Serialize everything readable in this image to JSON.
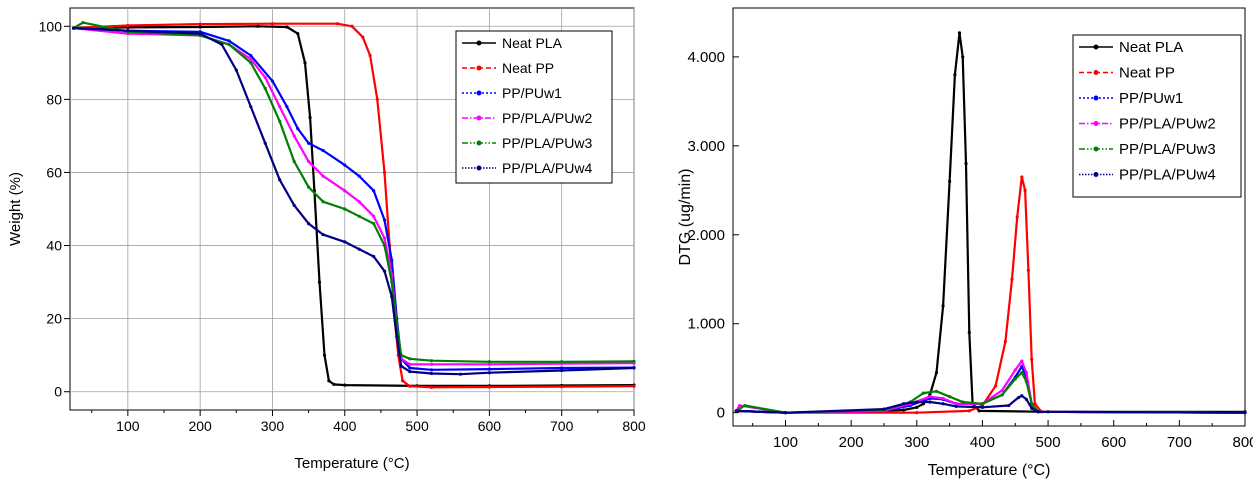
{
  "chart_data": [
    {
      "type": "line",
      "xlabel": "Temperature (°C)",
      "ylabel": "Weight (%)",
      "xlim": [
        20,
        800
      ],
      "ylim": [
        -5,
        105
      ],
      "xticks": [
        100,
        200,
        300,
        400,
        500,
        600,
        700,
        800
      ],
      "yticks": [
        0,
        20,
        40,
        60,
        80,
        100
      ],
      "xtick_labels": [
        "100",
        "200",
        "300",
        "400",
        "500",
        "600",
        "700",
        "800"
      ],
      "ytick_labels": [
        "0",
        "20",
        "40",
        "60",
        "80",
        "100"
      ],
      "grid": true,
      "legend_position": "top-right",
      "series": [
        {
          "name": "Neat PLA",
          "color": "#000000",
          "dash": "solid",
          "marker": "square",
          "points": [
            [
              25,
              99.5
            ],
            [
              100,
              99.7
            ],
            [
              200,
              99.8
            ],
            [
              280,
              100
            ],
            [
              320,
              99.8
            ],
            [
              335,
              98
            ],
            [
              345,
              90
            ],
            [
              352,
              75
            ],
            [
              358,
              55
            ],
            [
              365,
              30
            ],
            [
              372,
              10
            ],
            [
              378,
              3
            ],
            [
              385,
              2
            ],
            [
              400,
              1.8
            ],
            [
              500,
              1.6
            ],
            [
              600,
              1.6
            ],
            [
              700,
              1.7
            ],
            [
              800,
              1.8
            ]
          ]
        },
        {
          "name": "Neat PP",
          "color": "#ff0000",
          "dash": "dash",
          "marker": "circle",
          "points": [
            [
              25,
              99.5
            ],
            [
              100,
              100.2
            ],
            [
              200,
              100.6
            ],
            [
              300,
              100.7
            ],
            [
              390,
              100.7
            ],
            [
              410,
              100
            ],
            [
              425,
              97
            ],
            [
              435,
              92
            ],
            [
              445,
              80
            ],
            [
              455,
              60
            ],
            [
              462,
              40
            ],
            [
              468,
              22
            ],
            [
              474,
              10
            ],
            [
              480,
              3
            ],
            [
              490,
              1.5
            ],
            [
              520,
              1.2
            ],
            [
              600,
              1.3
            ],
            [
              700,
              1.4
            ],
            [
              800,
              1.5
            ]
          ]
        },
        {
          "name": "PP/PUw1",
          "color": "#0000ff",
          "dash": "dot",
          "marker": "triangle-up",
          "points": [
            [
              25,
              99.5
            ],
            [
              100,
              98.8
            ],
            [
              200,
              98.5
            ],
            [
              240,
              96
            ],
            [
              270,
              92
            ],
            [
              300,
              85
            ],
            [
              320,
              78
            ],
            [
              335,
              72
            ],
            [
              350,
              68
            ],
            [
              370,
              66
            ],
            [
              400,
              62
            ],
            [
              420,
              59
            ],
            [
              440,
              55
            ],
            [
              455,
              47
            ],
            [
              465,
              36
            ],
            [
              472,
              20
            ],
            [
              478,
              9
            ],
            [
              490,
              6.5
            ],
            [
              520,
              6
            ],
            [
              600,
              6.2
            ],
            [
              700,
              6.5
            ],
            [
              800,
              6.6
            ]
          ]
        },
        {
          "name": "PP/PLA/PUw2",
          "color": "#ff00ff",
          "dash": "dashdot",
          "marker": "triangle-down",
          "points": [
            [
              25,
              99.5
            ],
            [
              100,
              98
            ],
            [
              200,
              97.5
            ],
            [
              240,
              95
            ],
            [
              270,
              91
            ],
            [
              290,
              86
            ],
            [
              310,
              78
            ],
            [
              330,
              70
            ],
            [
              350,
              63
            ],
            [
              370,
              59
            ],
            [
              400,
              55
            ],
            [
              420,
              52
            ],
            [
              440,
              48
            ],
            [
              455,
              42
            ],
            [
              465,
              32
            ],
            [
              472,
              18
            ],
            [
              478,
              9
            ],
            [
              490,
              7.5
            ],
            [
              520,
              7.5
            ],
            [
              600,
              7.5
            ],
            [
              700,
              7.7
            ],
            [
              800,
              7.8
            ]
          ]
        },
        {
          "name": "PP/PLA/PUw3",
          "color": "#008000",
          "dash": "dashdotdot",
          "marker": "circle",
          "points": [
            [
              25,
              99.5
            ],
            [
              38,
              101
            ],
            [
              100,
              98.5
            ],
            [
              200,
              97.5
            ],
            [
              240,
              95
            ],
            [
              270,
              90
            ],
            [
              290,
              83
            ],
            [
              310,
              74
            ],
            [
              330,
              63
            ],
            [
              350,
              56
            ],
            [
              370,
              52
            ],
            [
              400,
              50
            ],
            [
              420,
              48
            ],
            [
              440,
              46
            ],
            [
              455,
              40
            ],
            [
              465,
              30
            ],
            [
              472,
              18
            ],
            [
              478,
              10
            ],
            [
              490,
              9
            ],
            [
              520,
              8.5
            ],
            [
              600,
              8.2
            ],
            [
              700,
              8.2
            ],
            [
              800,
              8.3
            ]
          ]
        },
        {
          "name": "PP/PLA/PUw4",
          "color": "#000080",
          "dash": "shortdot",
          "marker": "triangle-left",
          "points": [
            [
              25,
              99.5
            ],
            [
              100,
              98.8
            ],
            [
              200,
              98
            ],
            [
              230,
              95
            ],
            [
              250,
              88
            ],
            [
              270,
              78
            ],
            [
              290,
              68
            ],
            [
              310,
              58
            ],
            [
              330,
              51
            ],
            [
              350,
              46
            ],
            [
              370,
              43
            ],
            [
              400,
              41
            ],
            [
              420,
              39
            ],
            [
              440,
              37
            ],
            [
              455,
              33
            ],
            [
              465,
              26
            ],
            [
              472,
              15
            ],
            [
              478,
              7
            ],
            [
              490,
              5.5
            ],
            [
              520,
              5
            ],
            [
              560,
              4.8
            ],
            [
              600,
              5.2
            ],
            [
              700,
              5.8
            ],
            [
              800,
              6.5
            ]
          ]
        }
      ]
    },
    {
      "type": "line",
      "xlabel": "Temperature (°C)",
      "ylabel": "DTG (ug/min)",
      "xlim": [
        20,
        800
      ],
      "ylim": [
        -0.15,
        4.55
      ],
      "xticks": [
        100,
        200,
        300,
        400,
        500,
        600,
        700,
        800
      ],
      "yticks": [
        0,
        1,
        2,
        3,
        4
      ],
      "xtick_labels": [
        "100",
        "200",
        "300",
        "400",
        "500",
        "600",
        "700",
        "800"
      ],
      "ytick_labels": [
        "0",
        "1.000",
        "2.000",
        "3.000",
        "4.000"
      ],
      "grid": false,
      "legend_position": "top-right",
      "series": [
        {
          "name": "Neat PLA",
          "color": "#000000",
          "dash": "solid",
          "marker": "square",
          "points": [
            [
              25,
              0.02
            ],
            [
              100,
              0
            ],
            [
              200,
              0.01
            ],
            [
              280,
              0.03
            ],
            [
              300,
              0.06
            ],
            [
              310,
              0.1
            ],
            [
              320,
              0.2
            ],
            [
              330,
              0.45
            ],
            [
              340,
              1.2
            ],
            [
              350,
              2.6
            ],
            [
              358,
              3.8
            ],
            [
              365,
              4.27
            ],
            [
              370,
              4.0
            ],
            [
              375,
              2.8
            ],
            [
              380,
              0.9
            ],
            [
              385,
              0.1
            ],
            [
              395,
              0.02
            ],
            [
              500,
              0.01
            ],
            [
              800,
              0.01
            ]
          ]
        },
        {
          "name": "Neat PP",
          "color": "#ff0000",
          "dash": "dash",
          "marker": "circle",
          "points": [
            [
              25,
              0.02
            ],
            [
              100,
              0
            ],
            [
              300,
              0
            ],
            [
              380,
              0.02
            ],
            [
              400,
              0.08
            ],
            [
              420,
              0.3
            ],
            [
              435,
              0.8
            ],
            [
              445,
              1.5
            ],
            [
              453,
              2.2
            ],
            [
              460,
              2.65
            ],
            [
              465,
              2.5
            ],
            [
              470,
              1.6
            ],
            [
              475,
              0.6
            ],
            [
              480,
              0.1
            ],
            [
              490,
              0.01
            ],
            [
              800,
              0
            ]
          ]
        },
        {
          "name": "PP/PUw1",
          "color": "#0000ff",
          "dash": "dot",
          "marker": "triangle-up",
          "points": [
            [
              25,
              0.02
            ],
            [
              100,
              0
            ],
            [
              250,
              0.02
            ],
            [
              290,
              0.08
            ],
            [
              320,
              0.16
            ],
            [
              340,
              0.15
            ],
            [
              360,
              0.1
            ],
            [
              400,
              0.1
            ],
            [
              430,
              0.2
            ],
            [
              450,
              0.4
            ],
            [
              460,
              0.52
            ],
            [
              467,
              0.4
            ],
            [
              475,
              0.1
            ],
            [
              485,
              0.01
            ],
            [
              800,
              0
            ]
          ]
        },
        {
          "name": "PP/PLA/PUw2",
          "color": "#ff00ff",
          "dash": "dashdot",
          "marker": "triangle-down",
          "points": [
            [
              25,
              0.02
            ],
            [
              30,
              0.08
            ],
            [
              100,
              0
            ],
            [
              250,
              0.02
            ],
            [
              290,
              0.1
            ],
            [
              320,
              0.18
            ],
            [
              340,
              0.16
            ],
            [
              360,
              0.1
            ],
            [
              400,
              0.1
            ],
            [
              430,
              0.25
            ],
            [
              450,
              0.48
            ],
            [
              460,
              0.58
            ],
            [
              467,
              0.45
            ],
            [
              475,
              0.1
            ],
            [
              485,
              0.01
            ],
            [
              800,
              0
            ]
          ]
        },
        {
          "name": "PP/PLA/PUw3",
          "color": "#008000",
          "dash": "dashdotdot",
          "marker": "circle",
          "points": [
            [
              25,
              0.02
            ],
            [
              38,
              0.08
            ],
            [
              100,
              0
            ],
            [
              250,
              0.03
            ],
            [
              290,
              0.12
            ],
            [
              310,
              0.22
            ],
            [
              330,
              0.24
            ],
            [
              350,
              0.18
            ],
            [
              370,
              0.12
            ],
            [
              400,
              0.1
            ],
            [
              430,
              0.2
            ],
            [
              450,
              0.38
            ],
            [
              460,
              0.45
            ],
            [
              467,
              0.35
            ],
            [
              475,
              0.1
            ],
            [
              485,
              0.01
            ],
            [
              800,
              0
            ]
          ]
        },
        {
          "name": "PP/PLA/PUw4",
          "color": "#000080",
          "dash": "shortdot",
          "marker": "triangle-left",
          "points": [
            [
              25,
              0.02
            ],
            [
              100,
              0
            ],
            [
              250,
              0.04
            ],
            [
              280,
              0.1
            ],
            [
              300,
              0.12
            ],
            [
              320,
              0.12
            ],
            [
              340,
              0.1
            ],
            [
              360,
              0.07
            ],
            [
              400,
              0.06
            ],
            [
              440,
              0.08
            ],
            [
              455,
              0.17
            ],
            [
              460,
              0.19
            ],
            [
              467,
              0.15
            ],
            [
              475,
              0.05
            ],
            [
              485,
              0.01
            ],
            [
              800,
              0
            ]
          ]
        }
      ]
    }
  ]
}
